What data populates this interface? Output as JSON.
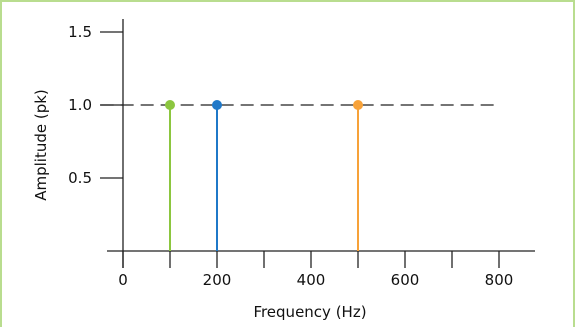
{
  "chart_data": {
    "type": "stem",
    "xlabel": "Frequency (Hz)",
    "ylabel": "Amplitude (pk)",
    "xlim": [
      0,
      800
    ],
    "ylim": [
      0,
      1.5
    ],
    "x_ticks": [
      0,
      100,
      200,
      300,
      400,
      500,
      600,
      700,
      800
    ],
    "x_tick_labels": [
      "0",
      "200",
      "400",
      "600",
      "800"
    ],
    "x_tick_label_values": [
      0,
      200,
      400,
      600,
      800
    ],
    "y_tick_labels": [
      "0.5",
      "1.0",
      "1.5"
    ],
    "y_tick_label_values": [
      0.5,
      1.0,
      1.5
    ],
    "reference_line": {
      "y": 1.0,
      "style": "dashed",
      "x_range": [
        -5,
        800
      ]
    },
    "series": [
      {
        "x": 100,
        "y": 1.0,
        "color": "#8cc63f"
      },
      {
        "x": 200,
        "y": 1.0,
        "color": "#1f78c8"
      },
      {
        "x": 500,
        "y": 1.0,
        "color": "#f7a239"
      }
    ],
    "grid": false,
    "legend": "none"
  }
}
